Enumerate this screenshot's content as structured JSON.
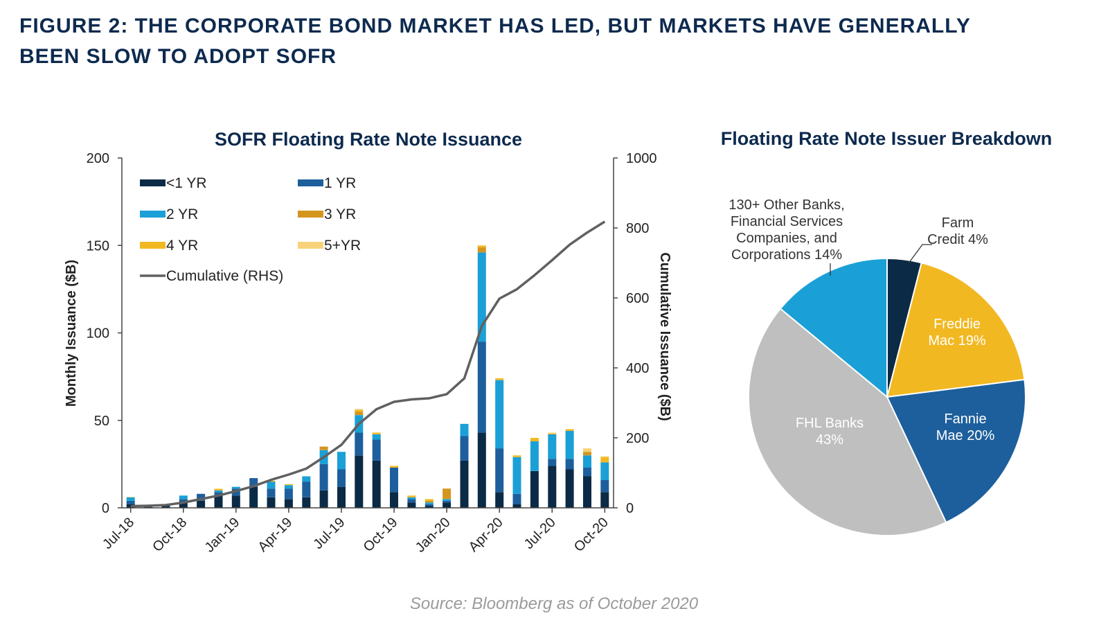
{
  "figure": {
    "title_line1": "FIGURE 2: THE CORPORATE BOND MARKET HAS LED, BUT MARKETS HAVE GENERALLY",
    "title_line2": "BEEN SLOW TO ADOPT SOFR",
    "source": "Source: Bloomberg as of October 2020"
  },
  "colors": {
    "lt1": "#0b2a45",
    "y1": "#1d5f9c",
    "y2": "#1aa0d6",
    "y3": "#d4951f",
    "y4": "#f2b822",
    "y5": "#f8d27a",
    "cumulative": "#606060",
    "pie_farm": "#0b2a45",
    "pie_freddie": "#f2b822",
    "pie_fannie": "#1d5f9c",
    "pie_fhl": "#bfbfbf",
    "pie_other": "#1aa0d6",
    "title": "#0d2a4e"
  },
  "chart_data": [
    {
      "type": "bar",
      "stacked": true,
      "title": "SOFR Floating Rate Note Issuance",
      "xlabel": "",
      "ylabel": "Monthly Issuance ($B)",
      "y2label": "Cumulative Issuance ($B)",
      "ylim": [
        0,
        200
      ],
      "y2lim": [
        0,
        1000
      ],
      "yticks": [
        0,
        50,
        100,
        150,
        200
      ],
      "y2ticks": [
        0,
        200,
        400,
        600,
        800,
        1000
      ],
      "grid": false,
      "legend_position": "top-left",
      "categories": [
        "Jul-18",
        "Aug-18",
        "Sep-18",
        "Oct-18",
        "Nov-18",
        "Dec-18",
        "Jan-19",
        "Feb-19",
        "Mar-19",
        "Apr-19",
        "May-19",
        "Jun-19",
        "Jul-19",
        "Aug-19",
        "Sep-19",
        "Oct-19",
        "Nov-19",
        "Dec-19",
        "Jan-20",
        "Feb-20",
        "Mar-20",
        "Apr-20",
        "May-20",
        "Jun-20",
        "Jul-20",
        "Aug-20",
        "Sep-20",
        "Oct-20"
      ],
      "xtick_labels": [
        "Jul-18",
        "Oct-18",
        "Jan-19",
        "Apr-19",
        "Jul-19",
        "Oct-19",
        "Jan-20",
        "Apr-20",
        "Jul-20",
        "Oct-20"
      ],
      "series": [
        {
          "name": "<1 YR",
          "key": "lt1",
          "values": [
            2,
            0.5,
            1,
            3,
            4,
            7,
            7,
            12,
            6,
            5,
            6,
            10,
            12,
            30,
            27,
            9,
            3,
            1,
            3,
            27,
            43,
            9,
            2,
            21,
            24,
            22,
            18,
            9
          ]
        },
        {
          "name": "1 YR",
          "key": "y1",
          "values": [
            2,
            0.5,
            0.5,
            2,
            4,
            2,
            4,
            5,
            5,
            6,
            9,
            15,
            10,
            13,
            12,
            14,
            2,
            1,
            1,
            14,
            52,
            25,
            6,
            0,
            4,
            6,
            5,
            7
          ]
        },
        {
          "name": "2 YR",
          "key": "y2",
          "values": [
            2,
            0,
            0,
            2,
            0,
            1,
            1,
            0,
            4,
            2,
            3,
            8,
            10,
            10,
            3,
            0,
            1,
            1,
            1,
            7,
            51,
            39,
            21,
            17,
            14,
            16,
            7,
            10
          ]
        },
        {
          "name": "3 YR",
          "key": "y3",
          "values": [
            0,
            0,
            0,
            0,
            0,
            0,
            0,
            0,
            0,
            0,
            0,
            2,
            0,
            2,
            0,
            0,
            0,
            1,
            6,
            0,
            3,
            0,
            0,
            0,
            0,
            0,
            2,
            0
          ]
        },
        {
          "name": "4 YR",
          "key": "y4",
          "values": [
            0,
            0,
            0,
            0,
            0,
            0.7,
            0,
            0,
            0.5,
            0.5,
            0,
            0,
            0,
            1,
            1,
            1,
            1,
            1,
            0,
            0,
            1,
            1,
            1,
            2,
            0.5,
            1,
            0,
            3
          ]
        },
        {
          "name": "5+YR",
          "key": "y5",
          "values": [
            0.3,
            0,
            0,
            0,
            0,
            0.3,
            0,
            0,
            0,
            0,
            0,
            0,
            0,
            0.5,
            0,
            0,
            0,
            0,
            0,
            0,
            0,
            0,
            0,
            0,
            0.5,
            0,
            2,
            0.5
          ]
        }
      ],
      "line_series": {
        "name": "Cumulative (RHS)",
        "key": "cumulative",
        "axis": "right",
        "values": [
          5,
          6,
          8,
          15,
          25,
          35,
          48,
          62,
          80,
          95,
          112,
          145,
          180,
          240,
          282,
          303,
          310,
          313,
          325,
          370,
          520,
          598,
          625,
          665,
          708,
          752,
          787,
          818
        ]
      }
    },
    {
      "type": "pie",
      "title": "Floating Rate Note Issuer Breakdown",
      "start_angle_deg": 0,
      "direction": "clockwise",
      "slices": [
        {
          "label": "Farm Credit",
          "label_lines": [
            "Farm",
            "Credit 4%"
          ],
          "value": 4,
          "key": "pie_farm",
          "label_position": "outside",
          "label_color": "#333333"
        },
        {
          "label": "Freddie Mac",
          "label_lines": [
            "Freddie",
            "Mac 19%"
          ],
          "value": 19,
          "key": "pie_freddie",
          "label_position": "inside",
          "label_color": "#ffffff"
        },
        {
          "label": "Fannie Mae",
          "label_lines": [
            "Fannie",
            "Mae 20%"
          ],
          "value": 20,
          "key": "pie_fannie",
          "label_position": "inside",
          "label_color": "#ffffff"
        },
        {
          "label": "FHL Banks",
          "label_lines": [
            "FHL Banks",
            "43%"
          ],
          "value": 43,
          "key": "pie_fhl",
          "label_position": "inside",
          "label_color": "#ffffff"
        },
        {
          "label": "130+ Other Banks, Financial Services Companies, and Corporations",
          "label_lines": [
            "130+ Other Banks,",
            "Financial Services",
            "Companies, and",
            "Corporations 14%"
          ],
          "value": 14,
          "key": "pie_other",
          "label_position": "outside",
          "label_color": "#333333"
        }
      ]
    }
  ]
}
